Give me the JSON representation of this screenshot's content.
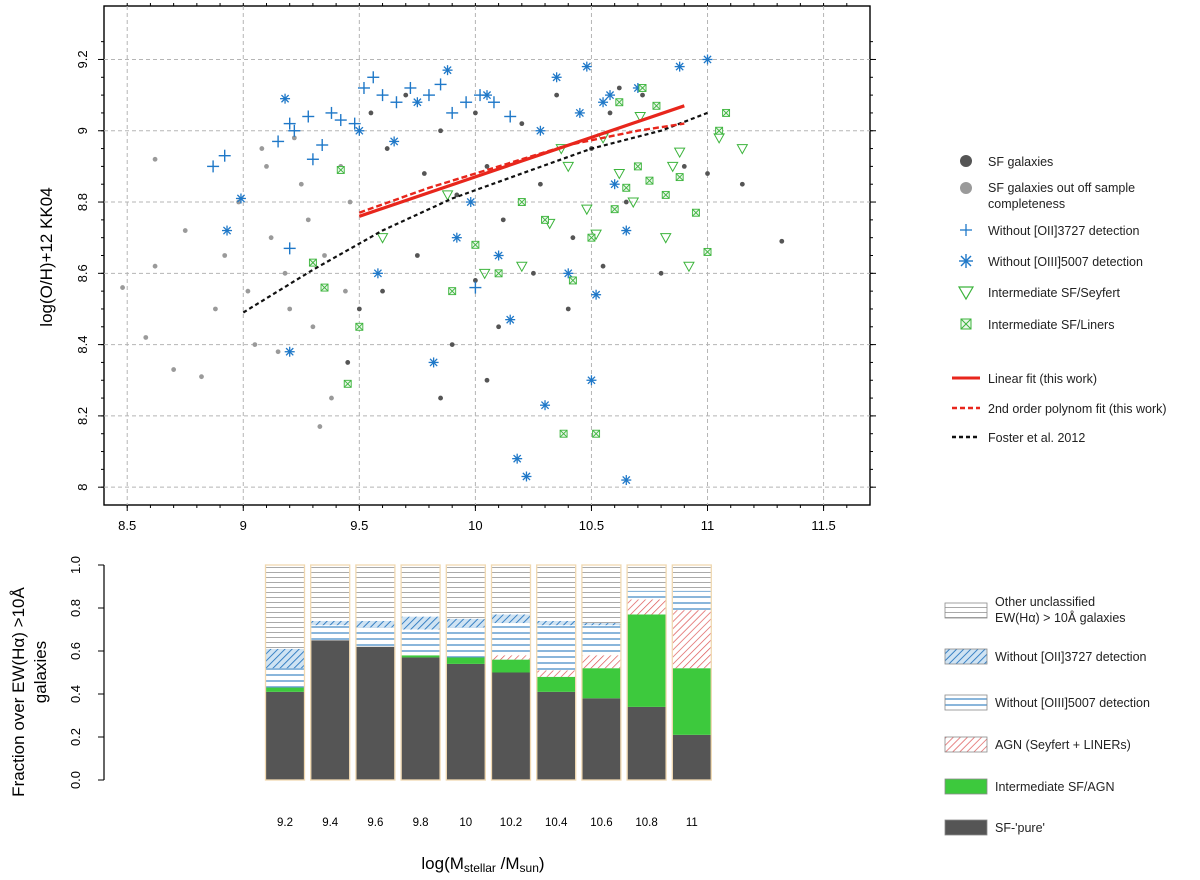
{
  "chart_data": [
    {
      "type": "scatter",
      "title": "",
      "xlabel": "",
      "ylabel": "log(O/H)+12 KK04",
      "xlim": [
        8.4,
        11.7
      ],
      "ylim": [
        7.95,
        9.35
      ],
      "grid": true,
      "xticks": [
        "8.5",
        "9",
        "9.5",
        "10",
        "10.5",
        "11",
        "11.5"
      ],
      "yticks": [
        "8",
        "8.2",
        "8.4",
        "8.6",
        "8.8",
        "9",
        "9.2"
      ],
      "legend": {
        "placement": "right",
        "entries": [
          {
            "label": "SF galaxies",
            "marker": "dark-dot"
          },
          {
            "label": "SF galaxies out off sample completeness",
            "marker": "light-dot"
          },
          {
            "label": "Without [OII]3727 detection",
            "marker": "plus"
          },
          {
            "label": "Without [OIII]5007 detection",
            "marker": "asterisk"
          },
          {
            "label": "Intermediate SF/Seyfert",
            "marker": "triangle"
          },
          {
            "label": "Intermediate SF/Liners",
            "marker": "boxed-x"
          },
          {
            "label": "Linear fit (this work)",
            "marker": "red-line"
          },
          {
            "label": "2nd order polynom fit (this work)",
            "marker": "red-dashed"
          },
          {
            "label": "Foster et al. 2012",
            "marker": "black-dashed"
          }
        ]
      },
      "series": [
        {
          "name": "SF galaxies",
          "color": "#555555",
          "points": [
            [
              9.55,
              9.05
            ],
            [
              9.62,
              8.95
            ],
            [
              9.7,
              9.1
            ],
            [
              9.78,
              8.88
            ],
            [
              9.85,
              9.0
            ],
            [
              9.92,
              8.82
            ],
            [
              10.0,
              9.05
            ],
            [
              10.05,
              8.9
            ],
            [
              10.12,
              8.75
            ],
            [
              10.2,
              9.02
            ],
            [
              10.28,
              8.85
            ],
            [
              10.35,
              9.1
            ],
            [
              10.42,
              8.7
            ],
            [
              10.5,
              8.95
            ],
            [
              10.58,
              9.05
            ],
            [
              10.65,
              8.8
            ],
            [
              10.72,
              9.1
            ],
            [
              10.8,
              8.6
            ],
            [
              10.9,
              8.9
            ],
            [
              11.0,
              8.88
            ],
            [
              11.15,
              8.85
            ],
            [
              11.32,
              8.69
            ],
            [
              9.6,
              8.55
            ],
            [
              9.75,
              8.65
            ],
            [
              9.9,
              8.4
            ],
            [
              10.0,
              8.58
            ],
            [
              10.1,
              8.45
            ],
            [
              10.25,
              8.6
            ],
            [
              10.4,
              8.5
            ],
            [
              9.5,
              8.5
            ],
            [
              9.45,
              8.35
            ],
            [
              9.85,
              8.25
            ],
            [
              10.05,
              8.3
            ],
            [
              10.62,
              9.12
            ],
            [
              10.55,
              8.62
            ]
          ]
        },
        {
          "name": "SF galaxies out off sample completeness",
          "color": "#9a9a9a",
          "points": [
            [
              8.48,
              8.56
            ],
            [
              8.58,
              8.42
            ],
            [
              8.62,
              8.62
            ],
            [
              8.7,
              8.33
            ],
            [
              8.75,
              8.72
            ],
            [
              8.82,
              8.31
            ],
            [
              8.88,
              8.5
            ],
            [
              8.92,
              8.65
            ],
            [
              8.98,
              8.8
            ],
            [
              9.02,
              8.55
            ],
            [
              9.05,
              8.4
            ],
            [
              9.1,
              8.9
            ],
            [
              9.12,
              8.7
            ],
            [
              9.18,
              8.6
            ],
            [
              9.2,
              8.5
            ],
            [
              9.25,
              8.85
            ],
            [
              9.28,
              8.75
            ],
            [
              9.3,
              8.45
            ],
            [
              9.35,
              8.65
            ],
            [
              9.38,
              8.25
            ],
            [
              9.42,
              8.9
            ],
            [
              9.44,
              8.55
            ],
            [
              9.46,
              8.8
            ],
            [
              9.15,
              8.38
            ],
            [
              9.08,
              8.95
            ],
            [
              9.22,
              8.98
            ],
            [
              8.62,
              8.92
            ],
            [
              9.33,
              8.17
            ]
          ]
        },
        {
          "name": "Without [OII]3727 detection",
          "color": "#1f78c8",
          "points": [
            [
              8.87,
              8.9
            ],
            [
              8.92,
              8.93
            ],
            [
              9.15,
              8.97
            ],
            [
              9.2,
              9.02
            ],
            [
              9.22,
              9.0
            ],
            [
              9.28,
              9.04
            ],
            [
              9.3,
              8.92
            ],
            [
              9.34,
              8.96
            ],
            [
              9.38,
              9.05
            ],
            [
              9.42,
              9.03
            ],
            [
              9.48,
              9.02
            ],
            [
              9.52,
              9.12
            ],
            [
              9.56,
              9.15
            ],
            [
              9.6,
              9.1
            ],
            [
              9.66,
              9.08
            ],
            [
              9.72,
              9.12
            ],
            [
              9.8,
              9.1
            ],
            [
              9.85,
              9.13
            ],
            [
              9.9,
              9.05
            ],
            [
              9.96,
              9.08
            ],
            [
              10.02,
              9.1
            ],
            [
              10.08,
              9.08
            ],
            [
              9.2,
              8.67
            ],
            [
              10.0,
              8.56
            ],
            [
              10.15,
              9.04
            ]
          ]
        },
        {
          "name": "Without [OIII]5007 detection",
          "color": "#1f78c8",
          "points": [
            [
              8.93,
              8.72
            ],
            [
              8.99,
              8.81
            ],
            [
              9.18,
              9.09
            ],
            [
              9.2,
              8.38
            ],
            [
              9.5,
              9.0
            ],
            [
              9.58,
              8.6
            ],
            [
              9.65,
              8.97
            ],
            [
              9.75,
              9.08
            ],
            [
              9.82,
              8.35
            ],
            [
              9.88,
              9.17
            ],
            [
              9.92,
              8.7
            ],
            [
              9.98,
              8.8
            ],
            [
              10.05,
              9.1
            ],
            [
              10.1,
              8.65
            ],
            [
              10.15,
              8.47
            ],
            [
              10.18,
              8.08
            ],
            [
              10.22,
              8.03
            ],
            [
              10.28,
              9.0
            ],
            [
              10.3,
              8.23
            ],
            [
              10.35,
              9.15
            ],
            [
              10.4,
              8.6
            ],
            [
              10.45,
              9.05
            ],
            [
              10.5,
              8.3
            ],
            [
              10.52,
              8.54
            ],
            [
              10.55,
              9.08
            ],
            [
              10.6,
              8.85
            ],
            [
              10.65,
              8.02
            ],
            [
              10.7,
              9.12
            ],
            [
              10.65,
              8.72
            ],
            [
              10.48,
              9.18
            ],
            [
              10.58,
              9.1
            ],
            [
              10.88,
              9.18
            ],
            [
              11.0,
              9.2
            ]
          ]
        },
        {
          "name": "Intermediate SF/Seyfert",
          "color": "#3cb43c",
          "points": [
            [
              9.88,
              8.82
            ],
            [
              10.2,
              8.62
            ],
            [
              10.32,
              8.74
            ],
            [
              10.4,
              8.9
            ],
            [
              10.55,
              8.98
            ],
            [
              10.62,
              8.88
            ],
            [
              10.68,
              8.8
            ],
            [
              10.82,
              8.7
            ],
            [
              10.92,
              8.62
            ],
            [
              11.05,
              8.98
            ],
            [
              11.15,
              8.95
            ],
            [
              10.88,
              8.94
            ],
            [
              9.6,
              8.7
            ],
            [
              10.04,
              8.6
            ],
            [
              10.48,
              8.78
            ],
            [
              10.71,
              9.04
            ],
            [
              10.85,
              8.9
            ],
            [
              10.37,
              8.95
            ],
            [
              10.52,
              8.71
            ]
          ]
        },
        {
          "name": "Intermediate SF/Liners",
          "color": "#3cb43c",
          "points": [
            [
              9.3,
              8.63
            ],
            [
              9.35,
              8.56
            ],
            [
              9.42,
              8.89
            ],
            [
              9.45,
              8.29
            ],
            [
              9.5,
              8.45
            ],
            [
              9.9,
              8.55
            ],
            [
              10.0,
              8.68
            ],
            [
              10.1,
              8.6
            ],
            [
              10.2,
              8.8
            ],
            [
              10.3,
              8.75
            ],
            [
              10.38,
              8.15
            ],
            [
              10.42,
              8.58
            ],
            [
              10.5,
              8.7
            ],
            [
              10.52,
              8.15
            ],
            [
              10.6,
              8.78
            ],
            [
              10.65,
              8.84
            ],
            [
              10.7,
              8.9
            ],
            [
              10.75,
              8.86
            ],
            [
              10.82,
              8.82
            ],
            [
              10.88,
              8.87
            ],
            [
              10.95,
              8.77
            ],
            [
              11.0,
              8.66
            ],
            [
              11.05,
              9.0
            ],
            [
              11.08,
              9.05
            ],
            [
              10.62,
              9.08
            ],
            [
              10.72,
              9.12
            ],
            [
              10.78,
              9.07
            ]
          ]
        },
        {
          "name": "Linear fit (this work)",
          "color": "#e8261c",
          "style": "solid",
          "x": [
            9.5,
            10.9
          ],
          "y": [
            8.76,
            9.07
          ]
        },
        {
          "name": "2nd order polynom fit (this work)",
          "color": "#e8261c",
          "style": "dashed",
          "x": [
            9.5,
            9.8,
            10.1,
            10.4,
            10.7,
            10.9
          ],
          "y": [
            8.77,
            8.84,
            8.9,
            8.96,
            9.0,
            9.02
          ]
        },
        {
          "name": "Foster et al. 2012",
          "color": "#111111",
          "style": "dashed",
          "x": [
            9.0,
            9.3,
            9.6,
            9.9,
            10.2,
            10.5,
            10.8,
            11.0
          ],
          "y": [
            8.49,
            8.61,
            8.72,
            8.81,
            8.88,
            8.95,
            9.0,
            9.05
          ]
        }
      ]
    },
    {
      "type": "bar",
      "stacked": true,
      "xlabel": "log(Mstellar /Msun)",
      "ylabel": "Fraction over EW(Hα) >10Å galaxies",
      "ylim": [
        0,
        1
      ],
      "yticks": [
        "0.0",
        "0.2",
        "0.4",
        "0.6",
        "0.8",
        "1.0"
      ],
      "categories": [
        "9.2",
        "9.4",
        "9.6",
        "9.8",
        "10",
        "10.2",
        "10.4",
        "10.6",
        "10.8",
        "11"
      ],
      "series": [
        {
          "name": "SF-'pure'",
          "color": "#555555",
          "pattern": "solid",
          "values": [
            0.41,
            0.65,
            0.62,
            0.57,
            0.54,
            0.5,
            0.41,
            0.38,
            0.34,
            0.21
          ]
        },
        {
          "name": "Intermediate SF/AGN",
          "color": "#3dc93d",
          "pattern": "solid",
          "values": [
            0.02,
            0.0,
            0.0,
            0.01,
            0.03,
            0.06,
            0.07,
            0.14,
            0.43,
            0.31
          ]
        },
        {
          "name": "AGN (Seyfert + LINERs)",
          "color": "#e06666",
          "pattern": "hatch",
          "values": [
            0.0,
            0.0,
            0.0,
            0.0,
            0.0,
            0.02,
            0.03,
            0.06,
            0.07,
            0.27
          ]
        },
        {
          "name": "Without [OIII]5007 detection",
          "color": "#6aa6d6",
          "pattern": "horizontal",
          "values": [
            0.09,
            0.07,
            0.09,
            0.12,
            0.14,
            0.15,
            0.21,
            0.14,
            0.04,
            0.09
          ]
        },
        {
          "name": "Without [OII]3727 detection",
          "color": "#4a90c8",
          "pattern": "hatch",
          "values": [
            0.09,
            0.02,
            0.03,
            0.06,
            0.04,
            0.04,
            0.02,
            0.01,
            0.0,
            0.0
          ]
        },
        {
          "name": "Other unclassified EW(Hα) > 10Å galaxies",
          "color": "#bbbbbb",
          "pattern": "horizontal",
          "values": [
            0.39,
            0.26,
            0.26,
            0.24,
            0.25,
            0.23,
            0.26,
            0.27,
            0.12,
            0.12
          ]
        }
      ],
      "legend": {
        "placement": "right",
        "entries": [
          {
            "label1": "Other unclassified",
            "label2": "EW(Hα) > 10Å galaxies"
          },
          {
            "label1": "Without [OII]3727 detection"
          },
          {
            "label1": "Without [OIII]5007 detection"
          },
          {
            "label1": "AGN (Seyfert + LINERs)"
          },
          {
            "label1": "Intermediate SF/AGN"
          },
          {
            "label1": "SF-'pure'"
          }
        ]
      }
    }
  ],
  "labels": {
    "top_ylabel": "log(O/H)+12 KK04",
    "bottom_ylabel_1": "Fraction over EW(Hα) >10Å",
    "bottom_ylabel_2": "galaxies",
    "bottom_xlabel_main": "log(M",
    "bottom_xlabel_sub1": "stellar",
    "bottom_xlabel_mid": " /M",
    "bottom_xlabel_sub2": "sun",
    "bottom_xlabel_end": ")",
    "legend_sf": "SF galaxies",
    "legend_sf_out_1": "SF galaxies out off sample",
    "legend_sf_out_2": "completeness",
    "legend_oii": "Without [OII]3727 detection",
    "legend_oiii": "Without [OIII]5007 detection",
    "legend_sey": "Intermediate SF/Seyfert",
    "legend_lin": "Intermediate SF/Liners",
    "legend_linfit": "Linear fit (this work)",
    "legend_poly": "2nd order polynom fit (this work)",
    "legend_foster": "Foster et al. 2012"
  }
}
